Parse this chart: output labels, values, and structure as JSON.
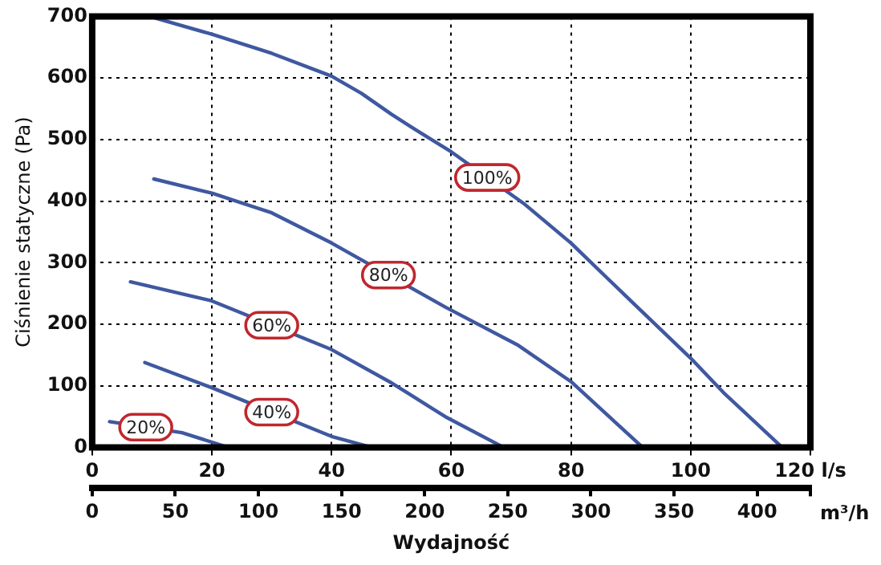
{
  "chart_data": {
    "type": "line",
    "ylabel": "Ciśnienie statyczne (Pa)",
    "xlabel": "Wydajność",
    "x2label": "m³/h",
    "xlim": [
      0,
      120
    ],
    "xticks": [
      0,
      20,
      40,
      60,
      80,
      100,
      {
        "value": 120,
        "label": "120 l/s"
      }
    ],
    "x2lim": [
      0,
      432
    ],
    "x2ticks": [
      0,
      50,
      100,
      150,
      200,
      250,
      300,
      350,
      400
    ],
    "ylim": [
      0,
      700
    ],
    "yticks": [
      0,
      100,
      200,
      300,
      400,
      500,
      600,
      700
    ],
    "grid": true,
    "legend": false,
    "marker": "none",
    "line_style": "solid",
    "series": [
      {
        "name": "100%",
        "color": "#3f58a0",
        "x": [
          10.6,
          20,
          30,
          40,
          45,
          50,
          55,
          60,
          72,
          80,
          90,
          100,
          105.5,
          115.3
        ],
        "values": [
          697,
          671,
          640,
          603,
          575,
          541,
          510,
          480,
          397,
          332,
          238,
          145,
          89,
          0
        ]
      },
      {
        "name": "80%",
        "color": "#3f58a0",
        "x": [
          10.3,
          20,
          30,
          40,
          59,
          71,
          80,
          92
        ],
        "values": [
          436,
          413,
          381,
          332,
          228,
          167,
          107,
          0
        ]
      },
      {
        "name": "60%",
        "color": "#3f58a0",
        "x": [
          6.4,
          20,
          40,
          50,
          59,
          68.8
        ],
        "values": [
          269,
          238,
          159,
          105,
          50,
          0
        ]
      },
      {
        "name": "40%",
        "color": "#3f58a0",
        "x": [
          8.8,
          20,
          40,
          46.8
        ],
        "values": [
          138,
          97,
          18,
          0
        ]
      },
      {
        "name": "20%",
        "color": "#3f58a0",
        "x": [
          2.9,
          15,
          22.8
        ],
        "values": [
          42,
          24,
          0
        ]
      }
    ]
  }
}
